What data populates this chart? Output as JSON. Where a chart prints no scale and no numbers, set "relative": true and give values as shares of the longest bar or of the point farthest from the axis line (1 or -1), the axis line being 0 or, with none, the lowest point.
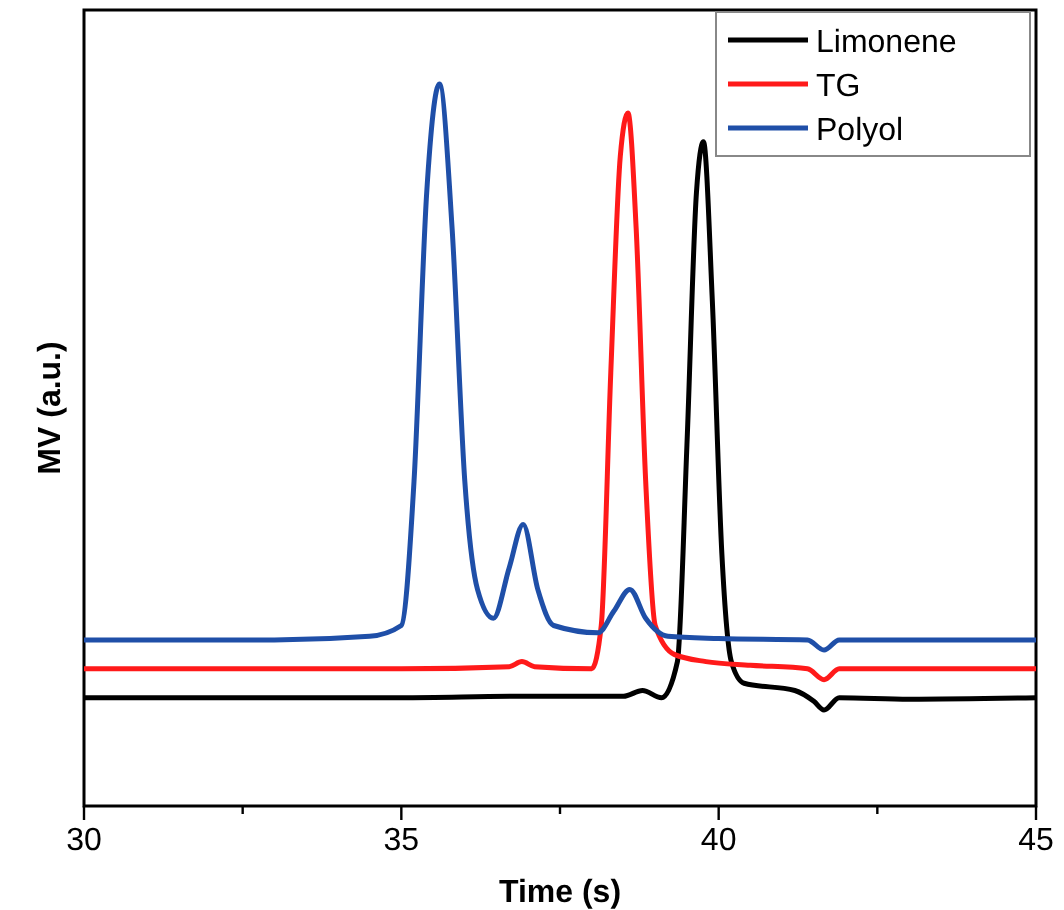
{
  "chart_data": {
    "type": "line",
    "relative": true,
    "xlabel": "Time (s)",
    "ylabel": "MV (a.u.)",
    "xlim": [
      30,
      45
    ],
    "xticks": [
      30,
      {
        "value": 32.5,
        "label": null
      },
      35,
      {
        "value": 37.5,
        "label": null
      },
      40,
      {
        "value": 42.5,
        "label": null
      },
      45
    ],
    "legend": "top right",
    "grid": false,
    "marker": "none",
    "line_style": "solid",
    "series": [
      {
        "name": "Limonene",
        "color": "#000000",
        "x": [
          30,
          33,
          35,
          36.9,
          38.5,
          38.8,
          39.1,
          39.35,
          39.5,
          39.65,
          39.76,
          39.9,
          40.05,
          40.2,
          40.4,
          41.2,
          41.5,
          41.66,
          41.9,
          43,
          45
        ],
        "values": [
          0.15,
          0.15,
          0.15,
          0.152,
          0.152,
          0.16,
          0.15,
          0.2,
          0.5,
          0.85,
          0.92,
          0.7,
          0.35,
          0.2,
          0.17,
          0.16,
          0.145,
          0.133,
          0.15,
          0.148,
          0.15
        ]
      },
      {
        "name": "TG",
        "color": "#ff1a1a",
        "x": [
          30,
          35,
          36.7,
          36.9,
          37.1,
          38,
          38.15,
          38.3,
          38.45,
          38.57,
          38.7,
          38.85,
          39,
          39.3,
          39.8,
          40.5,
          41.4,
          41.66,
          41.9,
          43,
          45
        ],
        "values": [
          0.19,
          0.19,
          0.193,
          0.2,
          0.193,
          0.19,
          0.25,
          0.6,
          0.9,
          0.96,
          0.8,
          0.45,
          0.25,
          0.21,
          0.2,
          0.195,
          0.19,
          0.175,
          0.19,
          0.19,
          0.19
        ]
      },
      {
        "name": "Polyol",
        "color": "#1f4fa8",
        "x": [
          30,
          33,
          34.5,
          35,
          35.2,
          35.4,
          35.6,
          35.8,
          36,
          36.2,
          36.45,
          36.7,
          36.92,
          37.15,
          37.4,
          38.1,
          38.35,
          38.6,
          38.85,
          39.2,
          40,
          41.4,
          41.66,
          41.9,
          43,
          45
        ],
        "values": [
          0.23,
          0.23,
          0.235,
          0.25,
          0.45,
          0.85,
          1,
          0.8,
          0.45,
          0.3,
          0.26,
          0.33,
          0.39,
          0.3,
          0.25,
          0.24,
          0.27,
          0.3,
          0.26,
          0.235,
          0.232,
          0.23,
          0.216,
          0.23,
          0.23,
          0.23
        ]
      }
    ]
  }
}
